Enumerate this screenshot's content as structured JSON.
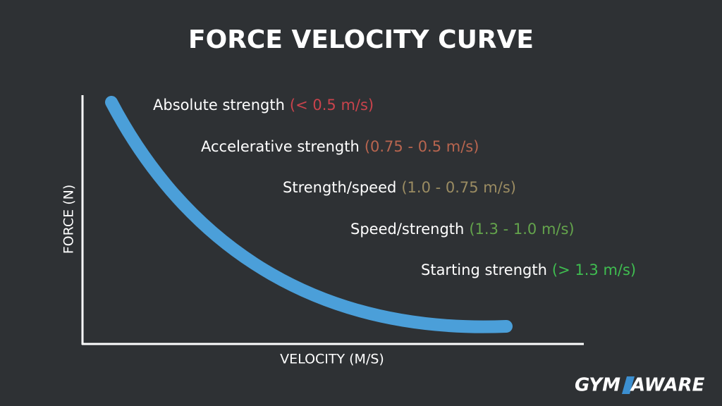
{
  "title": "FORCE VELOCITY CURVE",
  "y_axis_label": "FORCE (N)",
  "x_axis_label": "VELOCITY (M/S)",
  "zones": [
    {
      "label": "Absolute strength",
      "range": "(< 0.5 m/s)",
      "color": "#c9434c"
    },
    {
      "label": "Accelerative strength",
      "range": "(0.75 - 0.5 m/s)",
      "color": "#b8654f"
    },
    {
      "label": "Strength/speed",
      "range": "(1.0 - 0.75 m/s)",
      "color": "#9b8c62"
    },
    {
      "label": "Speed/strength",
      "range": "(1.3 - 1.0 m/s)",
      "color": "#64a44c"
    },
    {
      "label": "Starting strength",
      "range": "(> 1.3 m/s)",
      "color": "#3fbd50"
    }
  ],
  "logo": {
    "left": "GYM",
    "right": "AWARE"
  }
}
